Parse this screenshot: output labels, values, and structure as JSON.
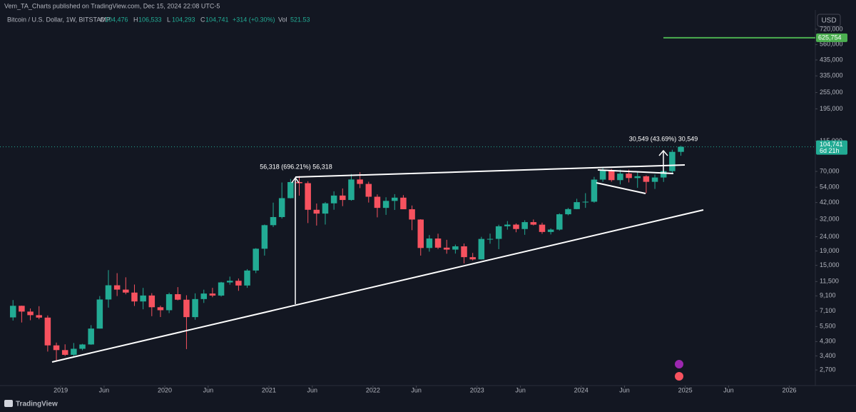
{
  "header": {
    "published": "Vem_TA_Charts published on TradingView.com, Dec 15, 2024 22:08 UTC-5",
    "symbol": "Bitcoin / U.S. Dollar, 1W, BITSTAMP",
    "ohlc": [
      {
        "key": "O",
        "value": "104,476"
      },
      {
        "key": "H",
        "value": "106,533"
      },
      {
        "key": "L",
        "value": "104,293"
      },
      {
        "key": "C",
        "value": "104,741"
      }
    ],
    "change": "+314 (+0.30%)",
    "vol_key": "Vol",
    "vol": "521.53",
    "currency": "USD"
  },
  "footer": {
    "brand": "TradingView"
  },
  "chart_data": {
    "type": "candlestick",
    "log_scale": true,
    "grid": false,
    "up_color": "#22ab94",
    "down_color": "#f7525f",
    "xlim": [
      "2018-06",
      "2026-04"
    ],
    "xticks": [
      {
        "value": "2019-01",
        "label": "2019"
      },
      {
        "value": "2019-06",
        "label": "Jun"
      },
      {
        "value": "2020-01",
        "label": "2020"
      },
      {
        "value": "2020-06",
        "label": "Jun"
      },
      {
        "value": "2021-01",
        "label": "2021"
      },
      {
        "value": "2021-06",
        "label": "Jun"
      },
      {
        "value": "2022-01",
        "label": "2022"
      },
      {
        "value": "2022-06",
        "label": "Jun"
      },
      {
        "value": "2023-01",
        "label": "2023"
      },
      {
        "value": "2023-06",
        "label": "Jun"
      },
      {
        "value": "2024-01",
        "label": "2024"
      },
      {
        "value": "2024-06",
        "label": "Jun"
      },
      {
        "value": "2025-01",
        "label": "2025"
      },
      {
        "value": "2025-06",
        "label": "Jun"
      },
      {
        "value": "2026-01",
        "label": "2026"
      }
    ],
    "ylim": [
      2090,
      818000
    ],
    "yticks": [
      {
        "value": 2700,
        "label": "2,700"
      },
      {
        "value": 3400,
        "label": "3,400"
      },
      {
        "value": 4300,
        "label": "4,300"
      },
      {
        "value": 5500,
        "label": "5,500"
      },
      {
        "value": 7100,
        "label": "7,100"
      },
      {
        "value": 9100,
        "label": "9,100"
      },
      {
        "value": 11500,
        "label": "11,500"
      },
      {
        "value": 15000,
        "label": "15,000"
      },
      {
        "value": 19000,
        "label": "19,000"
      },
      {
        "value": 24000,
        "label": "24,000"
      },
      {
        "value": 32000,
        "label": "32,000"
      },
      {
        "value": 42000,
        "label": "42,000"
      },
      {
        "value": 54000,
        "label": "54,000"
      },
      {
        "value": 70000,
        "label": "70,000"
      },
      {
        "value": 115000,
        "label": "115,000"
      },
      {
        "value": 195000,
        "label": "195,000"
      },
      {
        "value": 255000,
        "label": "255,000"
      },
      {
        "value": 335000,
        "label": "335,000"
      },
      {
        "value": 435000,
        "label": "435,000"
      },
      {
        "value": 560000,
        "label": "560,000"
      },
      {
        "value": 720000,
        "label": "720,000"
      }
    ],
    "x": [
      "2018-07",
      "2018-08",
      "2018-09",
      "2018-10",
      "2018-11",
      "2018-12",
      "2019-01",
      "2019-02",
      "2019-03",
      "2019-04",
      "2019-05",
      "2019-06",
      "2019-07",
      "2019-08",
      "2019-09",
      "2019-10",
      "2019-11",
      "2019-12",
      "2020-01",
      "2020-02",
      "2020-03",
      "2020-04",
      "2020-05",
      "2020-06",
      "2020-07",
      "2020-08",
      "2020-09",
      "2020-10",
      "2020-11",
      "2020-12",
      "2021-01",
      "2021-02",
      "2021-03",
      "2021-04",
      "2021-05",
      "2021-06",
      "2021-07",
      "2021-08",
      "2021-09",
      "2021-10",
      "2021-11",
      "2021-12",
      "2022-01",
      "2022-02",
      "2022-03",
      "2022-04",
      "2022-05",
      "2022-06",
      "2022-07",
      "2022-08",
      "2022-09",
      "2022-10",
      "2022-11",
      "2022-12",
      "2023-01",
      "2023-02",
      "2023-03",
      "2023-04",
      "2023-05",
      "2023-06",
      "2023-07",
      "2023-08",
      "2023-09",
      "2023-10",
      "2023-11",
      "2023-12",
      "2024-01",
      "2024-02",
      "2024-03",
      "2024-04",
      "2024-05",
      "2024-06",
      "2024-07",
      "2024-08",
      "2024-09",
      "2024-10",
      "2024-11",
      "2024-12"
    ],
    "open": [
      6390,
      7730,
      7030,
      6630,
      6370,
      4040,
      3740,
      3460,
      3820,
      4100,
      5320,
      8570,
      10820,
      10080,
      9600,
      8300,
      9150,
      7550,
      7190,
      9350,
      8540,
      6420,
      8630,
      9450,
      9140,
      11340,
      11650,
      10780,
      13780,
      19700,
      28990,
      33110,
      45140,
      58760,
      57700,
      37300,
      35040,
      41460,
      47100,
      43800,
      61300,
      57000,
      46200,
      38480,
      43160,
      45510,
      37630,
      31790,
      19940,
      23290,
      20050,
      19420,
      20490,
      17160,
      16540,
      23130,
      23150,
      28460,
      29260,
      27210,
      30470,
      29230,
      25930,
      26970,
      34660,
      37720,
      42280,
      42580,
      61180,
      71330,
      60650,
      67490,
      62770,
      64630,
      58980,
      63330,
      70290,
      96400
    ],
    "high": [
      8490,
      7750,
      7400,
      7680,
      6600,
      4230,
      4110,
      4200,
      4140,
      5630,
      9070,
      13880,
      13200,
      12330,
      10950,
      10370,
      9510,
      7750,
      9580,
      10500,
      9190,
      9480,
      10070,
      10380,
      11440,
      12470,
      12090,
      14100,
      19880,
      29300,
      41950,
      58350,
      61790,
      64900,
      59590,
      41330,
      42300,
      50500,
      52900,
      67000,
      69000,
      59100,
      47990,
      45800,
      48190,
      47440,
      40000,
      31960,
      24650,
      25200,
      22800,
      21080,
      21450,
      18390,
      23950,
      25250,
      29200,
      31000,
      29830,
      31400,
      31810,
      30200,
      27480,
      35200,
      38450,
      44700,
      48970,
      64000,
      73800,
      72800,
      71950,
      72000,
      70000,
      65600,
      66500,
      73600,
      99800,
      106533
    ],
    "low": [
      6070,
      5880,
      6100,
      6200,
      3650,
      3120,
      3400,
      3390,
      3730,
      4080,
      5320,
      7500,
      9070,
      9330,
      7710,
      7300,
      6520,
      6430,
      6860,
      8450,
      3800,
      6150,
      8100,
      8900,
      8990,
      10930,
      9880,
      10380,
      13210,
      17600,
      28130,
      32300,
      44960,
      47040,
      30000,
      28800,
      29280,
      37330,
      39600,
      43300,
      53250,
      42000,
      32950,
      34320,
      37200,
      37700,
      26700,
      17600,
      18780,
      19600,
      18150,
      18190,
      15480,
      16250,
      16500,
      21380,
      19570,
      26940,
      25810,
      24750,
      28860,
      25150,
      24900,
      26560,
      34100,
      37620,
      38500,
      41880,
      59000,
      59100,
      56500,
      58400,
      53500,
      49000,
      52500,
      58900,
      66800,
      90500
    ],
    "close": [
      7730,
      7030,
      6630,
      6370,
      4040,
      3740,
      3460,
      3820,
      4100,
      5320,
      8570,
      10820,
      10080,
      9600,
      8300,
      9150,
      7550,
      7190,
      9350,
      8540,
      6420,
      8630,
      9450,
      9140,
      11340,
      11650,
      10780,
      13780,
      19700,
      28990,
      33110,
      45140,
      58760,
      57700,
      37300,
      35040,
      41460,
      47100,
      43800,
      61300,
      57000,
      46200,
      38480,
      43160,
      45510,
      37630,
      31790,
      19940,
      23290,
      20050,
      19420,
      20490,
      17160,
      16540,
      23130,
      23150,
      28460,
      29260,
      27210,
      30470,
      29230,
      25930,
      26970,
      34660,
      37720,
      42280,
      42580,
      61180,
      71330,
      60650,
      67490,
      62770,
      64630,
      58980,
      63330,
      70290,
      96400,
      104741
    ],
    "last_price": {
      "label": "104,741",
      "countdown": "6d 21h",
      "color": "#22ab94"
    },
    "target_line": {
      "value": 625754,
      "label": "625,754",
      "color": "#4caf50"
    },
    "annotations": [
      "56,318 (696.21%) 56,318",
      "30,549 (43.69%) 30,549"
    ]
  }
}
